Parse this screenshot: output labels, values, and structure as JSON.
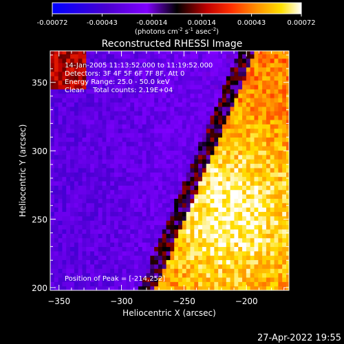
{
  "chart_data": {
    "type": "heatmap",
    "title": "Reconstructed RHESSI Image",
    "xlabel": "Heliocentric X (arcsec)",
    "ylabel": "Heliocentric Y (arcsec)",
    "xlim": [
      -357,
      -166
    ],
    "ylim": [
      198,
      373
    ],
    "x_ticks": [
      -350,
      -300,
      -250,
      -200
    ],
    "y_ticks": [
      200,
      250,
      300,
      350
    ],
    "colorbar": {
      "ticks": [
        "-0.00072",
        "-0.00043",
        "-0.00014",
        "0.00014",
        "0.00043",
        "0.00072"
      ],
      "range": [
        -0.00072,
        0.00072
      ],
      "unit_prefix": "(photons cm",
      "unit_exp1": "-2",
      "unit_mid": " s",
      "unit_exp2": "-1",
      "unit_mid2": " asec",
      "unit_exp3": "-2",
      "unit_suffix": ")"
    },
    "annotations": [
      "14-Jan-2005 11:13:52.000 to 11:19:52.000",
      "Detectors: 3F 4F 5F 6F 7F 8F, Att 0",
      "Energy Range: 25.0 - 50.0 keV",
      "Clean    Total counts: 2.19E+04"
    ],
    "peak_label": "Position of Peak = [-214,252]",
    "peak": [
      -214,
      252
    ],
    "colors": {
      "scale": [
        "#0000ff",
        "#4400cc",
        "#8800ff",
        "#000000",
        "#b00000",
        "#ff0000",
        "#ff8000",
        "#ffd000",
        "#ffffff"
      ]
    }
  },
  "footer_timestamp": "27-Apr-2022 19:55"
}
